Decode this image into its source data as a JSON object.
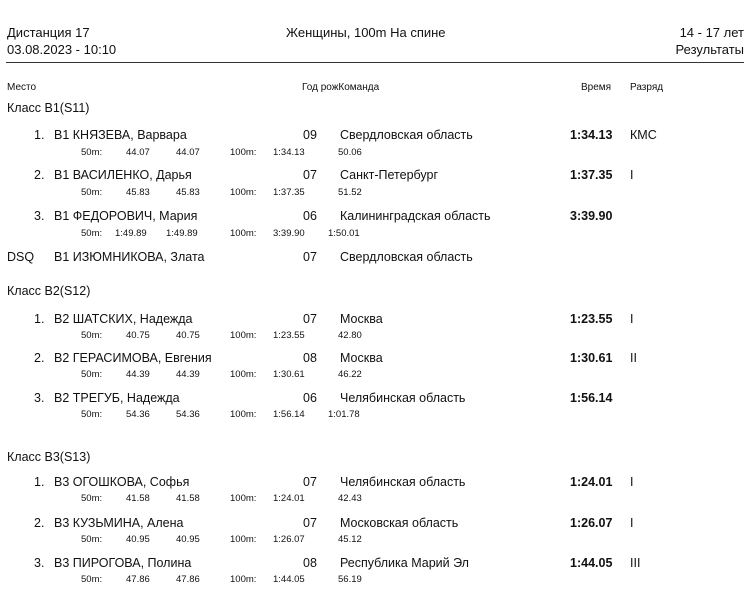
{
  "header": {
    "distance": "Дистанция 17",
    "datetime": "03.08.2023 - 10:10",
    "event": "Женщины, 100m На спине",
    "age": "14 - 17 лет",
    "results": "Результаты"
  },
  "columns": {
    "place": "Место",
    "year_team": "Год рожКоманда",
    "time": "Время",
    "rank": "Разряд"
  },
  "classes": [
    {
      "title": "Класс B1(S11)",
      "rows": [
        {
          "place": "1.",
          "name": "B1 КНЯЗЕВА, Варвара",
          "year": "09",
          "team": "Свердловская область",
          "time": "1:34.13",
          "rank": "КМС",
          "s_lab50": "50m:",
          "s_50a": "44.07",
          "s_50b": "44.07",
          "s_lab100": "100m:",
          "s_100a": "1:34.13",
          "s_100b": "50.06"
        },
        {
          "place": "2.",
          "name": "B1 ВАСИЛЕНКО, Дарья",
          "year": "07",
          "team": "Санкт-Петербург",
          "time": "1:37.35",
          "rank": "I",
          "s_lab50": "50m:",
          "s_50a": "45.83",
          "s_50b": "45.83",
          "s_lab100": "100m:",
          "s_100a": "1:37.35",
          "s_100b": "51.52"
        },
        {
          "place": "3.",
          "name": "B1 ФЕДОРОВИЧ, Мария",
          "year": "06",
          "team": "Калининградская область",
          "time": "3:39.90",
          "rank": "",
          "s_lab50": "50m:",
          "s_50a": "1:49.89",
          "s_50b": "1:49.89",
          "s_lab100": "100m:",
          "s_100a": "3:39.90",
          "s_100b": "1:50.01"
        },
        {
          "place": "DSQ",
          "name": "B1 ИЗЮМНИКОВА, Злата",
          "year": "07",
          "team": "Свердловская область",
          "time": "",
          "rank": ""
        }
      ]
    },
    {
      "title": "Класс B2(S12)",
      "rows": [
        {
          "place": "1.",
          "name": "B2 ШАТСКИХ, Надежда",
          "year": "07",
          "team": "Москва",
          "time": "1:23.55",
          "rank": "I",
          "s_lab50": "50m:",
          "s_50a": "40.75",
          "s_50b": "40.75",
          "s_lab100": "100m:",
          "s_100a": "1:23.55",
          "s_100b": "42.80"
        },
        {
          "place": "2.",
          "name": "B2 ГЕРАСИМОВА, Евгения",
          "year": "08",
          "team": "Москва",
          "time": "1:30.61",
          "rank": "II",
          "s_lab50": "50m:",
          "s_50a": "44.39",
          "s_50b": "44.39",
          "s_lab100": "100m:",
          "s_100a": "1:30.61",
          "s_100b": "46.22"
        },
        {
          "place": "3.",
          "name": "B2 ТРЕГУБ, Надежда",
          "year": "06",
          "team": "Челябинская область",
          "time": "1:56.14",
          "rank": "",
          "s_lab50": "50m:",
          "s_50a": "54.36",
          "s_50b": "54.36",
          "s_lab100": "100m:",
          "s_100a": "1:56.14",
          "s_100b": "1:01.78"
        }
      ]
    },
    {
      "title": "Класс B3(S13)",
      "rows": [
        {
          "place": "1.",
          "name": "B3 ОГОШКОВА, Софья",
          "year": "07",
          "team": "Челябинская область",
          "time": "1:24.01",
          "rank": "I",
          "s_lab50": "50m:",
          "s_50a": "41.58",
          "s_50b": "41.58",
          "s_lab100": "100m:",
          "s_100a": "1:24.01",
          "s_100b": "42.43"
        },
        {
          "place": "2.",
          "name": "B3 КУЗЬМИНА, Алена",
          "year": "07",
          "team": "Московская область",
          "time": "1:26.07",
          "rank": "I",
          "s_lab50": "50m:",
          "s_50a": "40.95",
          "s_50b": "40.95",
          "s_lab100": "100m:",
          "s_100a": "1:26.07",
          "s_100b": "45.12"
        },
        {
          "place": "3.",
          "name": "B3 ПИРОГОВА, Полина",
          "year": "08",
          "team": "Республика Марий Эл",
          "time": "1:44.05",
          "rank": "III",
          "s_lab50": "50m:",
          "s_50a": "47.86",
          "s_50b": "47.86",
          "s_lab100": "100m:",
          "s_100a": "1:44.05",
          "s_100b": "56.19"
        }
      ]
    }
  ]
}
